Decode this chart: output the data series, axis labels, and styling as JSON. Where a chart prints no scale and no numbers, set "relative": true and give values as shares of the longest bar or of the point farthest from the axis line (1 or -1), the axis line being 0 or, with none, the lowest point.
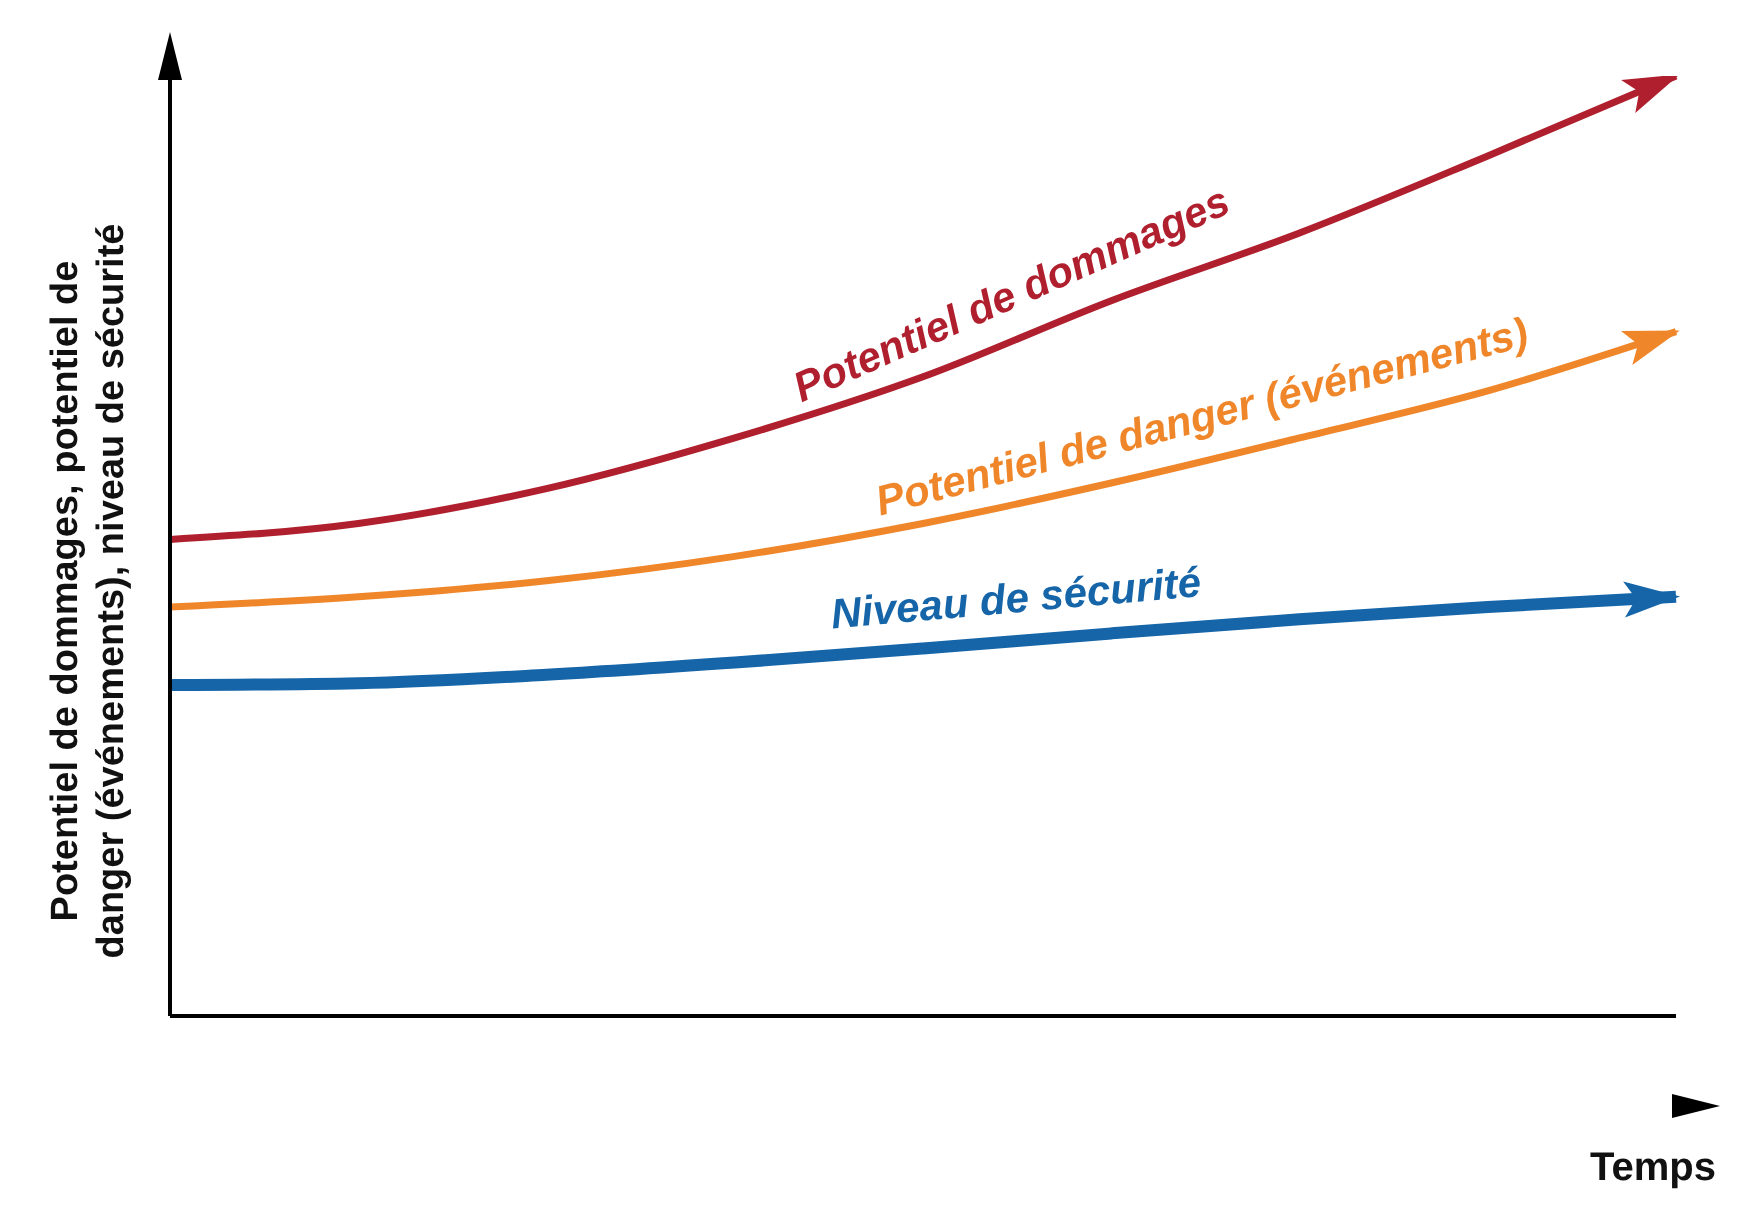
{
  "chart_data": {
    "type": "line",
    "relative": true,
    "xlabel": "Temps",
    "ylabel": "Potentiel de dommages, potentiel de danger (événements), niveau de sécurité",
    "categories": [
      null,
      null,
      null,
      null,
      null,
      null,
      null,
      null,
      null
    ],
    "grid": false,
    "legend": false,
    "series": [
      {
        "name": "Potentiel de dommages",
        "color": "#b01f2e",
        "values": [
          0.507,
          0.524,
          0.561,
          0.615,
          0.68,
          0.761,
          0.833,
          0.915,
          1
        ]
      },
      {
        "name": "Potentiel de danger (événements)",
        "color": "#f0862a",
        "values": [
          0.435,
          0.446,
          0.463,
          0.489,
          0.524,
          0.567,
          0.615,
          0.665,
          0.728
        ]
      },
      {
        "name": "Niveau de sécurité",
        "color": "#1565a8",
        "values": [
          0.352,
          0.354,
          0.363,
          0.376,
          0.391,
          0.407,
          0.422,
          0.435,
          0.446
        ]
      }
    ]
  }
}
